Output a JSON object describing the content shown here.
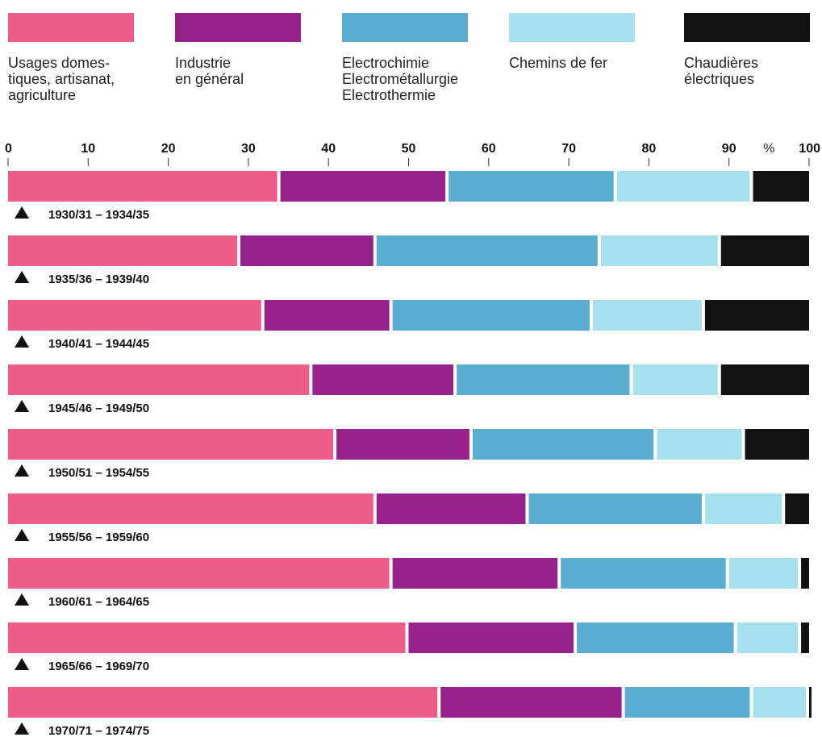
{
  "chart_data": {
    "type": "bar",
    "orientation": "horizontal",
    "stacked": true,
    "xlim": [
      0,
      100
    ],
    "x_ticks": [
      "0",
      "10",
      "20",
      "30",
      "40",
      "50",
      "60",
      "70",
      "80",
      "90",
      "100"
    ],
    "unit_label": "%",
    "legend_position": "top",
    "categories": [
      "1930/31 – 1934/35",
      "1935/36 – 1939/40",
      "1940/41 – 1944/45",
      "1945/46 – 1949/50",
      "1950/51 – 1954/55",
      "1955/56 – 1959/60",
      "1960/61 – 1964/65",
      "1965/66 – 1969/70",
      "1970/71 – 1974/75"
    ],
    "series": [
      {
        "name": "Usages domestiques, artisanat, agriculture",
        "legend_lines": [
          "Usages domes-",
          "tiques, artisanat,",
          "agriculture"
        ],
        "color": "#ee5c8a",
        "values": [
          34,
          29,
          32,
          38,
          41,
          46,
          48,
          50,
          54
        ]
      },
      {
        "name": "Industrie en général",
        "legend_lines": [
          "Industrie",
          "en général"
        ],
        "color": "#98228d",
        "values": [
          21,
          17,
          16,
          18,
          17,
          19,
          21,
          21,
          23
        ]
      },
      {
        "name": "Electrochimie Electrométallurgie Electrothermie",
        "legend_lines": [
          "Electrochimie",
          "Electrométallurgie",
          "Electrothermie"
        ],
        "color": "#5aaed0",
        "values": [
          21,
          28,
          25,
          22,
          23,
          22,
          21,
          20,
          16
        ]
      },
      {
        "name": "Chemins de fer",
        "legend_lines": [
          "Chemins de fer"
        ],
        "color": "#a7e0ef",
        "values": [
          17,
          15,
          14,
          11,
          11,
          10,
          9,
          8,
          7
        ]
      },
      {
        "name": "Chaudières électriques",
        "legend_lines": [
          "Chaudières",
          "électriques"
        ],
        "color": "#121212",
        "values": [
          7,
          11,
          13,
          11,
          8,
          3,
          1,
          1,
          0.3
        ]
      }
    ]
  }
}
